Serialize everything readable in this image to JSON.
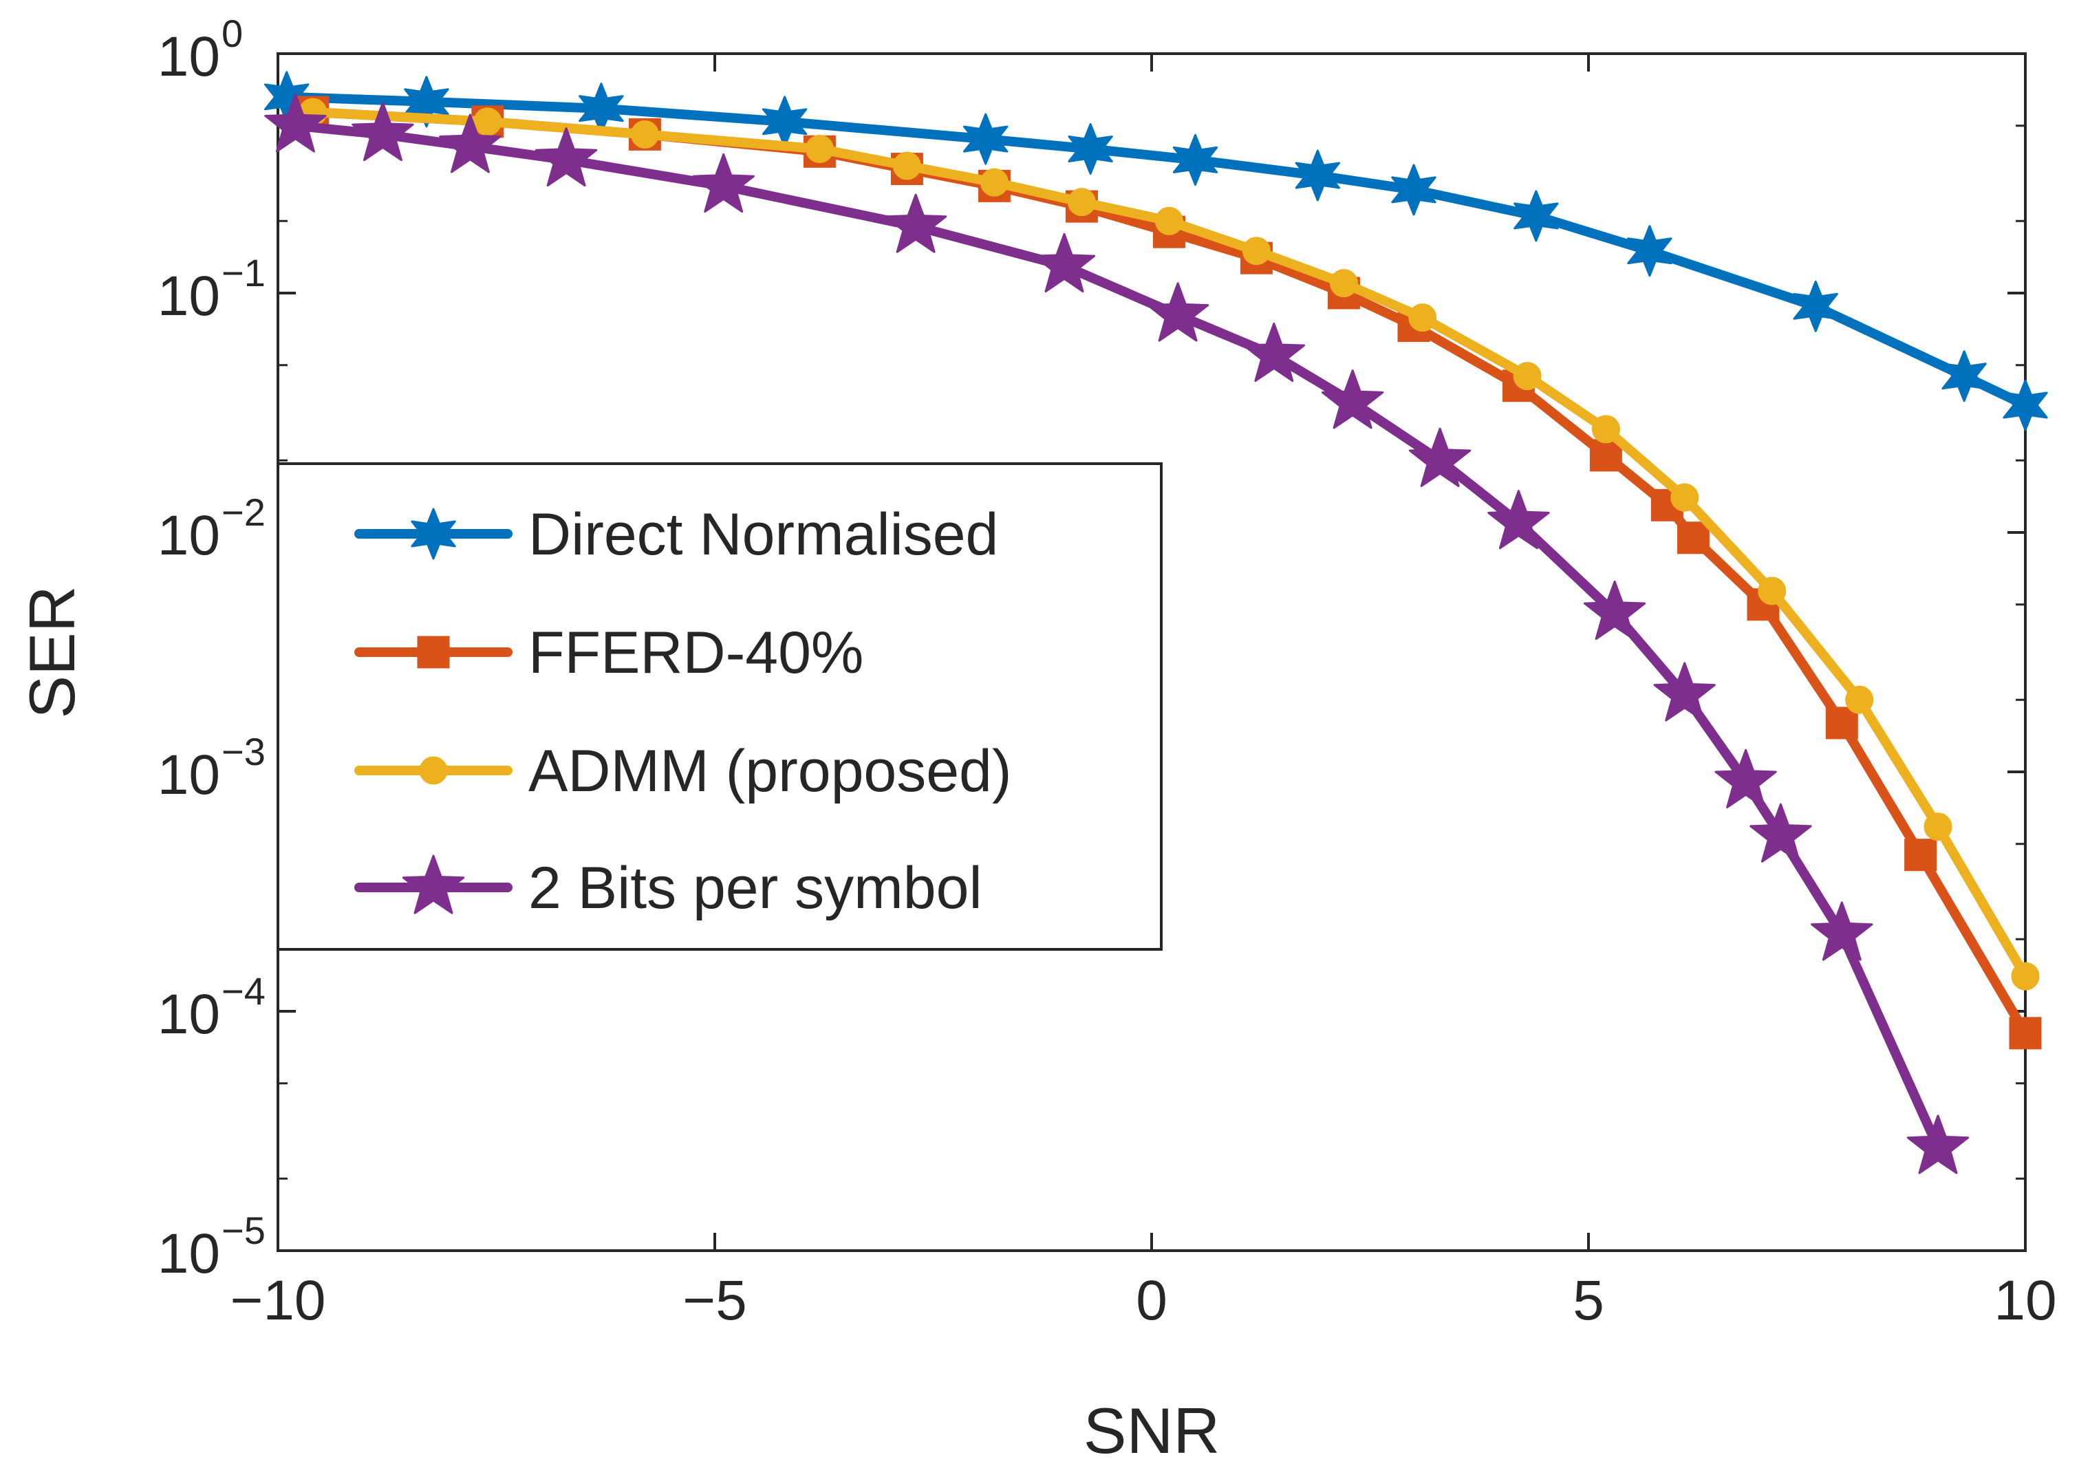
{
  "chart_data": {
    "type": "line",
    "title": "",
    "xlabel": "SNR",
    "ylabel": "SER",
    "xlim": [
      -10,
      10
    ],
    "ylim": [
      1e-05,
      1
    ],
    "yscale": "log",
    "grid": false,
    "legend_position": "middle-left",
    "x_ticks": [
      {
        "value": -10,
        "label": "−10"
      },
      {
        "value": -5,
        "label": "−5"
      },
      {
        "value": 0,
        "label": "0"
      },
      {
        "value": 5,
        "label": "5"
      },
      {
        "value": 10,
        "label": "10"
      }
    ],
    "y_ticks": [
      {
        "value": 1,
        "base": "10",
        "exp": "0"
      },
      {
        "value": 0.1,
        "base": "10",
        "exp": "−1"
      },
      {
        "value": 0.01,
        "base": "10",
        "exp": "−2"
      },
      {
        "value": 0.001,
        "base": "10",
        "exp": "−3"
      },
      {
        "value": 0.0001,
        "base": "10",
        "exp": "−4"
      },
      {
        "value": 1e-05,
        "base": "10",
        "exp": "−5"
      }
    ],
    "series": [
      {
        "name": "Direct Normalised",
        "color": "#0072BD",
        "marker": "star6",
        "x": [
          -9.9,
          -8.3,
          -6.3,
          -4.2,
          -1.9,
          -0.7,
          0.5,
          1.9,
          3.0,
          4.4,
          5.7,
          7.6,
          9.3,
          10.0
        ],
        "y": [
          0.66,
          0.63,
          0.59,
          0.52,
          0.44,
          0.4,
          0.36,
          0.31,
          0.27,
          0.21,
          0.15,
          0.088,
          0.045,
          0.034
        ]
      },
      {
        "name": "FFERD-40%",
        "color": "#D95319",
        "marker": "square",
        "x": [
          -9.6,
          -7.6,
          -5.8,
          -3.8,
          -2.8,
          -1.8,
          -0.8,
          0.2,
          1.2,
          2.2,
          3.0,
          4.2,
          5.2,
          5.9,
          6.2,
          7.0,
          7.9,
          8.8,
          10.0
        ],
        "y": [
          0.57,
          0.52,
          0.46,
          0.39,
          0.33,
          0.28,
          0.23,
          0.18,
          0.14,
          0.1,
          0.073,
          0.041,
          0.021,
          0.013,
          0.0095,
          0.005,
          0.0016,
          0.00045,
          8.1e-05
        ]
      },
      {
        "name": "ADMM (proposed)",
        "color": "#EDB120",
        "marker": "circle",
        "x": [
          -9.6,
          -7.6,
          -5.8,
          -3.8,
          -2.8,
          -1.8,
          -0.8,
          0.2,
          1.2,
          2.2,
          3.1,
          4.3,
          5.2,
          6.1,
          7.1,
          8.1,
          9.0,
          10.0
        ],
        "y": [
          0.57,
          0.52,
          0.46,
          0.4,
          0.34,
          0.29,
          0.24,
          0.2,
          0.15,
          0.11,
          0.079,
          0.045,
          0.027,
          0.014,
          0.0057,
          0.002,
          0.00059,
          0.00014
        ]
      },
      {
        "name": "2 Bits per symbol",
        "color": "#7E2F8E",
        "marker": "star5",
        "x": [
          -9.8,
          -8.8,
          -7.8,
          -6.7,
          -4.9,
          -2.7,
          -1.0,
          0.3,
          1.4,
          2.3,
          3.3,
          4.2,
          5.3,
          6.1,
          6.8,
          7.2,
          7.9,
          9.0
        ],
        "y": [
          0.5,
          0.46,
          0.41,
          0.36,
          0.28,
          0.19,
          0.13,
          0.081,
          0.055,
          0.035,
          0.02,
          0.011,
          0.0046,
          0.0021,
          0.00091,
          0.00054,
          0.00021,
          2.7e-05
        ]
      }
    ]
  }
}
